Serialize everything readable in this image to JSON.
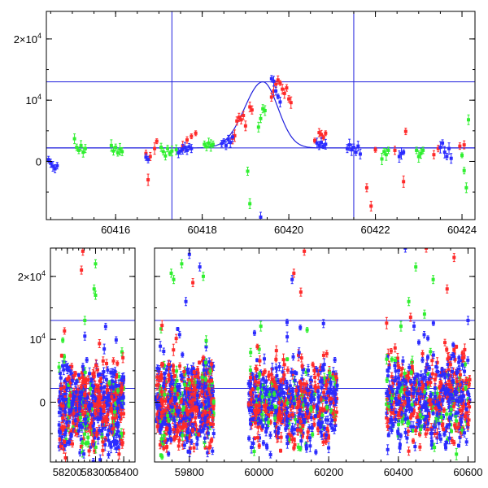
{
  "chart_data": [
    {
      "type": "scatter",
      "panel": "top",
      "xlim": [
        60414.4,
        60424.3
      ],
      "ylim": [
        -9500,
        24500
      ],
      "x_ticks": [
        60416,
        60418,
        60420,
        60422,
        60424
      ],
      "x_tick_labels": [
        "60416",
        "60418",
        "60420",
        "60422",
        "60424"
      ],
      "y_ticks": [
        0,
        10000,
        20000
      ],
      "y_tick_labels": [
        {
          "base": "0",
          "exp": ""
        },
        {
          "base": "10",
          "exp": "4"
        },
        {
          "base": "2×10",
          "exp": "4"
        }
      ],
      "grid": false,
      "hlines": [
        2200,
        13000
      ],
      "vlines": [
        60417.3,
        60421.5
      ],
      "model": {
        "baseline": 2200,
        "peak": 13000,
        "t0": 60419.4,
        "width_rise": 0.42,
        "width_fall": 0.35
      },
      "colors": {
        "red": "#ff2a2a",
        "green": "#2fef2f",
        "blue": "#2b2bff",
        "line": "#2020dd"
      },
      "series": [
        {
          "color": "red",
          "points": [
            [
              60416.7,
              1300
            ],
            [
              60416.75,
              -3000
            ],
            [
              60416.8,
              800
            ],
            [
              60416.9,
              2100
            ],
            [
              60416.95,
              3300
            ],
            [
              60417.55,
              2500
            ],
            [
              60417.65,
              3500
            ],
            [
              60417.75,
              4100
            ],
            [
              60417.85,
              4600
            ],
            [
              60418.7,
              3800
            ],
            [
              60418.75,
              4200
            ],
            [
              60418.8,
              6600
            ],
            [
              60418.85,
              7200
            ],
            [
              60418.9,
              6800
            ],
            [
              60418.95,
              7500
            ],
            [
              60419.0,
              5800
            ],
            [
              60419.1,
              8900
            ],
            [
              60419.15,
              8400
            ],
            [
              60419.6,
              10500
            ],
            [
              60419.65,
              11500
            ],
            [
              60419.7,
              12600
            ],
            [
              60419.75,
              13300
            ],
            [
              60419.8,
              12800
            ],
            [
              60419.85,
              11800
            ],
            [
              60419.9,
              11100
            ],
            [
              60419.95,
              12000
            ],
            [
              60420.0,
              10200
            ],
            [
              60420.05,
              9600
            ],
            [
              60420.6,
              3400
            ],
            [
              60420.7,
              4700
            ],
            [
              60420.75,
              4400
            ],
            [
              60420.8,
              3900
            ],
            [
              60420.85,
              4600
            ],
            [
              60421.8,
              -4300
            ],
            [
              60421.9,
              -7300
            ],
            [
              60422.0,
              1900
            ],
            [
              60422.45,
              1800
            ],
            [
              60422.65,
              -3300
            ],
            [
              60422.7,
              4900
            ],
            [
              60423.35,
              1100
            ],
            [
              60423.45,
              2100
            ],
            [
              60423.95,
              2500
            ],
            [
              60424.05,
              2700
            ]
          ]
        },
        {
          "color": "green",
          "points": [
            [
              60415.05,
              3700
            ],
            [
              60415.1,
              2300
            ],
            [
              60415.15,
              1800
            ],
            [
              60415.2,
              2600
            ],
            [
              60415.25,
              1500
            ],
            [
              60415.3,
              2100
            ],
            [
              60415.9,
              2600
            ],
            [
              60415.95,
              1700
            ],
            [
              60416.0,
              2300
            ],
            [
              60416.05,
              1400
            ],
            [
              60416.1,
              2000
            ],
            [
              60416.15,
              1600
            ],
            [
              60417.05,
              2300
            ],
            [
              60417.1,
              1600
            ],
            [
              60417.15,
              900
            ],
            [
              60417.2,
              2100
            ],
            [
              60417.25,
              1300
            ],
            [
              60417.3,
              1700
            ],
            [
              60417.4,
              1900
            ],
            [
              60418.05,
              2800
            ],
            [
              60418.1,
              2400
            ],
            [
              60418.15,
              3000
            ],
            [
              60418.2,
              2600
            ],
            [
              60418.25,
              2800
            ],
            [
              60419.05,
              -1600
            ],
            [
              60419.1,
              -6900
            ],
            [
              60419.3,
              5600
            ],
            [
              60419.35,
              7000
            ],
            [
              60419.4,
              8600
            ],
            [
              60419.45,
              8300
            ],
            [
              60422.15,
              400
            ],
            [
              60422.2,
              1600
            ],
            [
              60422.25,
              1100
            ],
            [
              60422.3,
              1800
            ],
            [
              60422.95,
              1800
            ],
            [
              60423.0,
              800
            ],
            [
              60423.05,
              1300
            ],
            [
              60423.1,
              1800
            ],
            [
              60424.0,
              1000
            ],
            [
              60424.05,
              -1500
            ],
            [
              60424.1,
              -4300
            ],
            [
              60424.15,
              6800
            ]
          ]
        },
        {
          "color": "blue",
          "points": [
            [
              60414.45,
              300
            ],
            [
              60414.5,
              -300
            ],
            [
              60414.55,
              -800
            ],
            [
              60414.6,
              -1200
            ],
            [
              60414.65,
              -700
            ],
            [
              60416.7,
              700
            ],
            [
              60416.75,
              300
            ],
            [
              60417.45,
              1400
            ],
            [
              60417.5,
              1700
            ],
            [
              60417.55,
              2000
            ],
            [
              60417.6,
              2300
            ],
            [
              60417.65,
              1800
            ],
            [
              60417.7,
              2400
            ],
            [
              60417.75,
              2100
            ],
            [
              60418.45,
              2900
            ],
            [
              60418.5,
              3300
            ],
            [
              60418.55,
              2600
            ],
            [
              60418.6,
              3600
            ],
            [
              60418.65,
              3100
            ],
            [
              60418.7,
              4000
            ],
            [
              60419.35,
              -9100
            ],
            [
              60419.6,
              13500
            ],
            [
              60419.65,
              13100
            ],
            [
              60419.7,
              11500
            ],
            [
              60419.75,
              10600
            ],
            [
              60419.8,
              9700
            ],
            [
              60420.65,
              3000
            ],
            [
              60420.7,
              2600
            ],
            [
              60420.75,
              3100
            ],
            [
              60420.8,
              2500
            ],
            [
              60420.85,
              2800
            ],
            [
              60421.35,
              2100
            ],
            [
              60421.4,
              2700
            ],
            [
              60421.45,
              1900
            ],
            [
              60421.5,
              2300
            ],
            [
              60421.55,
              1500
            ],
            [
              60421.6,
              2500
            ],
            [
              60421.65,
              1200
            ],
            [
              60422.55,
              800
            ],
            [
              60422.6,
              1300
            ],
            [
              60422.65,
              1500
            ],
            [
              60423.5,
              2300
            ],
            [
              60423.55,
              3000
            ],
            [
              60423.6,
              1500
            ],
            [
              60423.65,
              800
            ],
            [
              60423.7,
              2100
            ],
            [
              60423.75,
              500
            ]
          ]
        }
      ]
    },
    {
      "type": "scatter",
      "panel": "bottom",
      "ylim": [
        -9500,
        24500
      ],
      "y_ticks": [
        0,
        10000,
        20000
      ],
      "y_tick_labels": [
        {
          "base": "0",
          "exp": ""
        },
        {
          "base": "10",
          "exp": "4"
        },
        {
          "base": "2×10",
          "exp": "4"
        }
      ],
      "grid": false,
      "hlines": [
        2200,
        13000
      ],
      "broken_axis": true,
      "segments": [
        {
          "xlim": [
            58140,
            58440
          ],
          "x_ticks": [
            58200,
            58300,
            58400
          ],
          "x_tick_labels": [
            "58200",
            "58300",
            "58400"
          ]
        },
        {
          "xlim": [
            59700,
            60620
          ],
          "x_ticks": [
            59800,
            60000,
            60200,
            60400,
            60600
          ],
          "x_tick_labels": [
            "59800",
            "60000",
            "60200",
            "60400",
            "60600"
          ]
        }
      ],
      "seasons": [
        {
          "segment": 0,
          "xrange": [
            58170,
            58400
          ],
          "center": -800,
          "spread": 3200
        },
        {
          "segment": 1,
          "xrange": [
            59705,
            59870
          ],
          "center": -600,
          "spread": 3300
        },
        {
          "segment": 1,
          "xrange": [
            59970,
            60225
          ],
          "center": -300,
          "spread": 3300
        },
        {
          "segment": 1,
          "xrange": [
            60365,
            60605
          ],
          "center": 400,
          "spread": 3300
        }
      ],
      "outliers": [
        {
          "segment": 0,
          "x": 58255,
          "y": 24000,
          "color": "red"
        },
        {
          "segment": 0,
          "x": 58250,
          "y": 21000,
          "color": "red"
        },
        {
          "segment": 0,
          "x": 58300,
          "y": 22000,
          "color": "green"
        },
        {
          "segment": 0,
          "x": 58300,
          "y": 17000,
          "color": "green"
        },
        {
          "segment": 0,
          "x": 58295,
          "y": 18000,
          "color": "green"
        },
        {
          "segment": 0,
          "x": 58262,
          "y": 13000,
          "color": "green"
        },
        {
          "segment": 0,
          "x": 58262,
          "y": 10500,
          "color": "blue"
        },
        {
          "segment": 1,
          "x": 59800,
          "y": 23500,
          "color": "blue"
        },
        {
          "segment": 1,
          "x": 59830,
          "y": 21500,
          "color": "blue"
        },
        {
          "segment": 1,
          "x": 59778,
          "y": 22000,
          "color": "green"
        },
        {
          "segment": 1,
          "x": 59748,
          "y": 20500,
          "color": "green"
        },
        {
          "segment": 1,
          "x": 59755,
          "y": 19500,
          "color": "green"
        },
        {
          "segment": 1,
          "x": 59810,
          "y": 19000,
          "color": "red"
        },
        {
          "segment": 1,
          "x": 59840,
          "y": 20000,
          "color": "green"
        },
        {
          "segment": 1,
          "x": 59790,
          "y": 16000,
          "color": "blue"
        },
        {
          "segment": 1,
          "x": 60100,
          "y": 20500,
          "color": "red"
        },
        {
          "segment": 1,
          "x": 60095,
          "y": 19500,
          "color": "blue"
        },
        {
          "segment": 1,
          "x": 60130,
          "y": 24000,
          "color": "red"
        },
        {
          "segment": 1,
          "x": 60120,
          "y": 17500,
          "color": "red"
        },
        {
          "segment": 1,
          "x": 60185,
          "y": 12500,
          "color": "blue"
        },
        {
          "segment": 1,
          "x": 60420,
          "y": 24500,
          "color": "blue"
        },
        {
          "segment": 1,
          "x": 60450,
          "y": 21500,
          "color": "green"
        },
        {
          "segment": 1,
          "x": 60480,
          "y": 24500,
          "color": "red"
        },
        {
          "segment": 1,
          "x": 60500,
          "y": 19500,
          "color": "green"
        },
        {
          "segment": 1,
          "x": 60560,
          "y": 23000,
          "color": "red"
        },
        {
          "segment": 1,
          "x": 60540,
          "y": 18000,
          "color": "red"
        },
        {
          "segment": 1,
          "x": 60430,
          "y": 16000,
          "color": "green"
        },
        {
          "segment": 1,
          "x": 60475,
          "y": 14000,
          "color": "green"
        },
        {
          "segment": 1,
          "x": 60600,
          "y": 13000,
          "color": "blue"
        }
      ],
      "colors": {
        "red": "#ff2a2a",
        "green": "#2fef2f",
        "blue": "#2b2bff",
        "line": "#2020dd"
      }
    }
  ]
}
